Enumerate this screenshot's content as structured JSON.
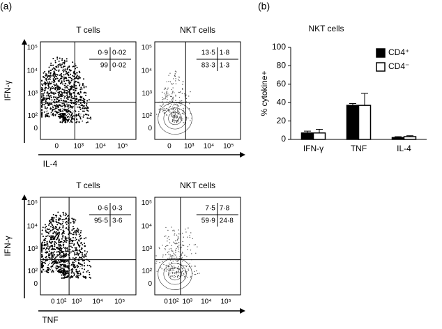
{
  "panel_labels": [
    "(a)",
    "(b)"
  ],
  "flow": [
    {
      "x_label": "IL-4",
      "y_label": "IFN-γ",
      "y_ticks": [
        "10⁵",
        "10⁴",
        "10³",
        "10²",
        "0"
      ],
      "x_ticks": [
        "0",
        "10³",
        "10⁴",
        "10⁵"
      ],
      "plots": [
        {
          "title": "T cells",
          "quadrants": [
            "0·9",
            "0·02",
            "99",
            "0·02"
          ]
        },
        {
          "title": "NKT cells",
          "quadrants": [
            "13·5",
            "1·8",
            "83·3",
            "1·3"
          ]
        }
      ]
    },
    {
      "x_label": "TNF",
      "y_label": "IFN-γ",
      "y_ticks": [
        "10⁵",
        "10⁴",
        "10³",
        "10²",
        "0"
      ],
      "x_ticks": [
        "0",
        "10²",
        "10³",
        "10⁴",
        "10⁵"
      ],
      "plots": [
        {
          "title": "T cells",
          "quadrants": [
            "0·6",
            "0·3",
            "95·5",
            "3·6"
          ]
        },
        {
          "title": "NKT cells",
          "quadrants": [
            "7·5",
            "7·8",
            "59·9",
            "24·8"
          ]
        }
      ]
    }
  ],
  "chart_data": {
    "type": "bar",
    "title": "NKT cells",
    "y_label": "% cytokine+",
    "categories": [
      "IFN-γ",
      "TNF",
      "IL-4"
    ],
    "series": [
      {
        "name": "CD4⁺",
        "color": "#000000",
        "values": [
          7,
          37,
          2
        ],
        "errors": [
          2,
          2,
          1
        ]
      },
      {
        "name": "CD4⁻",
        "color": "#ffffff",
        "values": [
          7,
          37,
          3
        ],
        "errors": [
          4,
          13,
          1
        ]
      }
    ],
    "ylim": [
      0,
      100
    ],
    "yticks": [
      0,
      20,
      40,
      60,
      80,
      100
    ],
    "legend": "top-right"
  }
}
